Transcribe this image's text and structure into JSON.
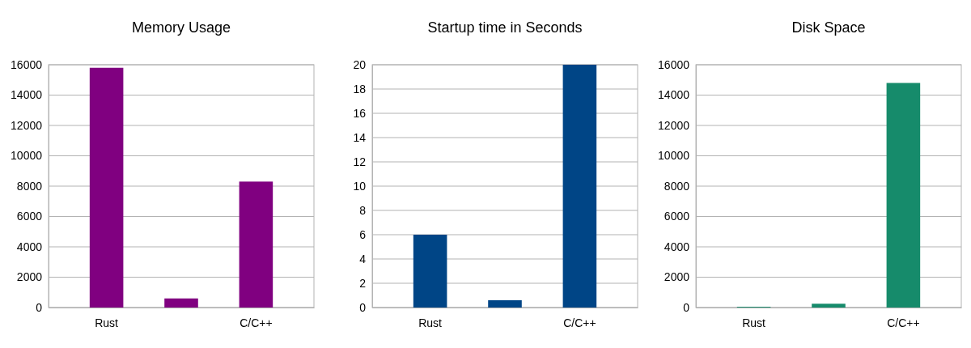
{
  "chart_data": [
    {
      "type": "bar",
      "title": "Memory Usage",
      "categories": [
        "Rust",
        null,
        "C/C++"
      ],
      "values": [
        15800,
        600,
        8300
      ],
      "color": "#800080",
      "ylim": [
        0,
        16000
      ],
      "yticks": [
        0,
        2000,
        4000,
        6000,
        8000,
        10000,
        12000,
        14000,
        16000
      ],
      "grid": "y"
    },
    {
      "type": "bar",
      "title": "Startup time in Seconds",
      "categories": [
        "Rust",
        null,
        "C/C++"
      ],
      "values": [
        6,
        0.6,
        20
      ],
      "color": "#004586",
      "ylim": [
        0,
        20
      ],
      "yticks": [
        0,
        2,
        4,
        6,
        8,
        10,
        12,
        14,
        16,
        18,
        20
      ],
      "grid": "y"
    },
    {
      "type": "bar",
      "title": "Disk Space",
      "categories": [
        "Rust",
        null,
        "C/C++"
      ],
      "values": [
        50,
        250,
        14800
      ],
      "color": "#168b6b",
      "ylim": [
        0,
        16000
      ],
      "yticks": [
        0,
        2000,
        4000,
        6000,
        8000,
        10000,
        12000,
        14000,
        16000
      ],
      "grid": "y"
    }
  ]
}
